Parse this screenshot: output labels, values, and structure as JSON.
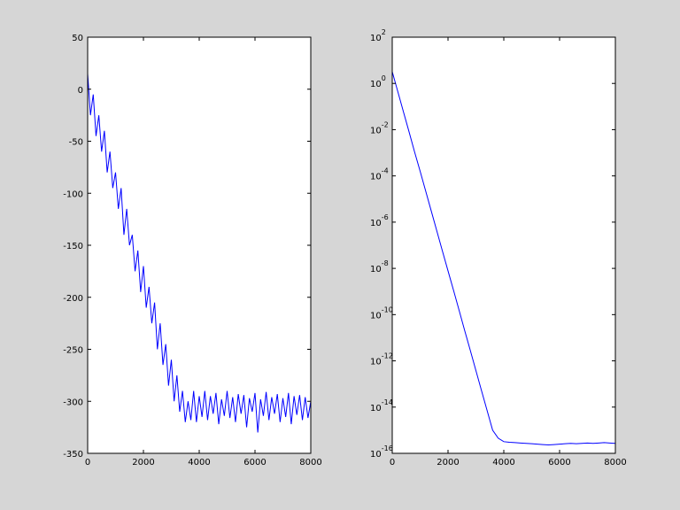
{
  "chart_data": [
    {
      "type": "line",
      "color": "#0000ff",
      "x": [
        0,
        100,
        200,
        300,
        400,
        500,
        600,
        700,
        800,
        900,
        1000,
        1100,
        1200,
        1300,
        1400,
        1500,
        1600,
        1700,
        1800,
        1900,
        2000,
        2100,
        2200,
        2300,
        2400,
        2500,
        2600,
        2700,
        2800,
        2900,
        3000,
        3100,
        3200,
        3300,
        3400,
        3500,
        3600,
        3700,
        3800,
        3900,
        4000,
        4100,
        4200,
        4300,
        4400,
        4500,
        4600,
        4700,
        4800,
        4900,
        5000,
        5100,
        5200,
        5300,
        5400,
        5500,
        5600,
        5700,
        5800,
        5900,
        6000,
        6100,
        6200,
        6300,
        6400,
        6500,
        6600,
        6700,
        6800,
        6900,
        7000,
        7100,
        7200,
        7300,
        7400,
        7500,
        7600,
        7700,
        7800,
        7900,
        8000
      ],
      "values": [
        15,
        -25,
        -5,
        -45,
        -25,
        -60,
        -40,
        -80,
        -60,
        -95,
        -80,
        -115,
        -95,
        -140,
        -115,
        -150,
        -140,
        -175,
        -155,
        -195,
        -170,
        -210,
        -190,
        -225,
        -205,
        -250,
        -225,
        -265,
        -245,
        -285,
        -260,
        -300,
        -275,
        -310,
        -290,
        -320,
        -300,
        -318,
        -290,
        -320,
        -295,
        -315,
        -290,
        -318,
        -295,
        -312,
        -292,
        -322,
        -298,
        -314,
        -290,
        -316,
        -296,
        -320,
        -293,
        -312,
        -294,
        -325,
        -297,
        -310,
        -292,
        -330,
        -298,
        -314,
        -291,
        -318,
        -296,
        -312,
        -293,
        -320,
        -297,
        -315,
        -292,
        -322,
        -295,
        -313,
        -294,
        -318,
        -296,
        -316,
        -300
      ],
      "xlim": [
        0,
        8000
      ],
      "xticks": [
        0,
        2000,
        4000,
        6000,
        8000
      ],
      "ylim": [
        -350,
        50
      ],
      "yticks": [
        -350,
        -300,
        -250,
        -200,
        -150,
        -100,
        -50,
        0,
        50
      ]
    },
    {
      "type": "line",
      "color": "#0000ff",
      "yscale": "log",
      "x": [
        0,
        200,
        400,
        600,
        800,
        1000,
        1200,
        1400,
        1600,
        1800,
        2000,
        2200,
        2400,
        2600,
        2800,
        3000,
        3200,
        3400,
        3600,
        3800,
        4000,
        4200,
        4400,
        4600,
        4800,
        5000,
        5200,
        5400,
        5600,
        5800,
        6000,
        6200,
        6400,
        6600,
        6800,
        7000,
        7200,
        7400,
        7600,
        7800,
        8000
      ],
      "values": [
        3.2,
        0.44,
        0.06,
        0.0083,
        0.0011,
        0.00016,
        2.2e-05,
        3e-06,
        4.1e-07,
        5.6e-08,
        7.8e-09,
        1.1e-09,
        1.5e-10,
        2e-11,
        2.8e-12,
        3.8e-13,
        5.2e-14,
        7.2e-15,
        1e-15,
        4.5e-16,
        3.2e-16,
        3e-16,
        2.9e-16,
        2.8e-16,
        2.7e-16,
        2.6e-16,
        2.5e-16,
        2.4e-16,
        2.3e-16,
        2.4e-16,
        2.5e-16,
        2.6e-16,
        2.7e-16,
        2.6e-16,
        2.7e-16,
        2.8e-16,
        2.7e-16,
        2.8e-16,
        2.9e-16,
        2.8e-16,
        2.7e-16
      ],
      "xlim": [
        0,
        8000
      ],
      "xticks": [
        0,
        2000,
        4000,
        6000,
        8000
      ],
      "ylim": [
        1e-16,
        100
      ],
      "yticks": [
        {
          "value": 1e-16,
          "label": "10",
          "exp": "-16"
        },
        {
          "value": 1e-14,
          "label": "10",
          "exp": "-14"
        },
        {
          "value": 1e-12,
          "label": "10",
          "exp": "-12"
        },
        {
          "value": 1e-10,
          "label": "10",
          "exp": "-10"
        },
        {
          "value": 1e-08,
          "label": "10",
          "exp": "-8"
        },
        {
          "value": 1e-06,
          "label": "10",
          "exp": "-6"
        },
        {
          "value": 0.0001,
          "label": "10",
          "exp": "-4"
        },
        {
          "value": 0.01,
          "label": "10",
          "exp": "-2"
        },
        {
          "value": 1,
          "label": "10",
          "exp": "0"
        },
        {
          "value": 100,
          "label": "10",
          "exp": "2"
        }
      ]
    }
  ]
}
